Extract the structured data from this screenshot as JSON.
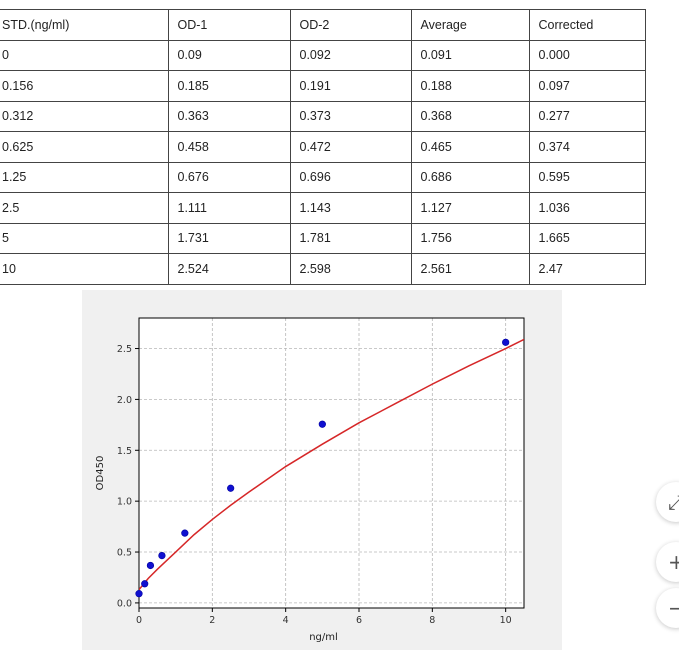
{
  "table": {
    "headers": [
      "STD.(ng/ml)",
      "OD-1",
      "OD-2",
      "Average",
      "Corrected"
    ],
    "rows": [
      [
        "0",
        "0.09",
        "0.092",
        "0.091",
        "0.000"
      ],
      [
        "0.156",
        "0.185",
        "0.191",
        "0.188",
        "0.097"
      ],
      [
        "0.312",
        "0.363",
        "0.373",
        "0.368",
        "0.277"
      ],
      [
        "0.625",
        "0.458",
        "0.472",
        "0.465",
        "0.374"
      ],
      [
        "1.25",
        "0.676",
        "0.696",
        "0.686",
        "0.595"
      ],
      [
        "2.5",
        "1.111",
        "1.143",
        "1.127",
        "1.036"
      ],
      [
        "5",
        "1.731",
        "1.781",
        "1.756",
        "1.665"
      ],
      [
        "10",
        "2.524",
        "2.598",
        "2.561",
        "2.47"
      ]
    ]
  },
  "chart_data": {
    "type": "scatter",
    "xlabel": "ng/ml",
    "ylabel": "OD450",
    "xlim": [
      0,
      10.5
    ],
    "ylim": [
      -0.05,
      2.8
    ],
    "xticks": [
      0,
      2,
      4,
      6,
      8,
      10
    ],
    "yticks": [
      0.0,
      0.5,
      1.0,
      1.5,
      2.0,
      2.5
    ],
    "grid": true,
    "series": [
      {
        "kind": "points",
        "color": "#1010d0",
        "x": [
          0,
          0.156,
          0.312,
          0.625,
          1.25,
          2.5,
          5,
          10
        ],
        "y": [
          0.091,
          0.188,
          0.368,
          0.465,
          0.686,
          1.127,
          1.756,
          2.561
        ]
      },
      {
        "kind": "fit-curve",
        "color": "#d62728",
        "x": [
          0,
          0.25,
          0.5,
          1,
          1.5,
          2,
          2.5,
          3,
          4,
          5,
          6,
          7,
          8,
          9,
          10,
          10.5
        ],
        "y": [
          0.13,
          0.24,
          0.33,
          0.5,
          0.67,
          0.82,
          0.96,
          1.09,
          1.34,
          1.56,
          1.77,
          1.96,
          2.15,
          2.33,
          2.5,
          2.59
        ]
      }
    ]
  },
  "zoom": {
    "buttons": [
      {
        "name": "zoom-fit-button",
        "glyph": "⤢"
      },
      {
        "name": "zoom-in-button",
        "glyph": "+"
      },
      {
        "name": "zoom-out-button",
        "glyph": "−"
      }
    ]
  }
}
